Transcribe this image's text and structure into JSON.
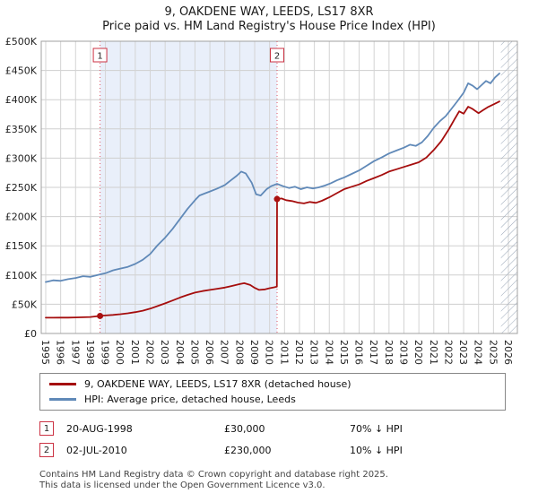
{
  "title": "9, OAKDENE WAY, LEEDS, LS17 8XR",
  "subtitle": "Price paid vs. HM Land Registry's House Price Index (HPI)",
  "legend": [
    {
      "label": "9, OAKDENE WAY, LEEDS, LS17 8XR (detached house)",
      "color": "#a50d0d"
    },
    {
      "label": "HPI: Average price, detached house, Leeds",
      "color": "#6089b8"
    }
  ],
  "sales": [
    {
      "num": "1",
      "date": "20-AUG-1998",
      "price": "£30,000",
      "hpi": "70% ↓ HPI"
    },
    {
      "num": "2",
      "date": "02-JUL-2010",
      "price": "£230,000",
      "hpi": "10% ↓ HPI"
    }
  ],
  "footer": {
    "line1": "Contains HM Land Registry data © Crown copyright and database right 2025.",
    "line2": "This data is licensed under the Open Government Licence v3.0."
  },
  "chart_data": {
    "type": "line",
    "title": "9, OAKDENE WAY, LEEDS, LS17 8XR",
    "subtitle": "Price paid vs. HM Land Registry's House Price Index (HPI)",
    "xlabel": "",
    "ylabel": "",
    "grid": true,
    "legend_position": "bottom",
    "xlim": [
      1994.7,
      2026.6
    ],
    "ylim": [
      0,
      500000
    ],
    "yticks": [
      0,
      50000,
      100000,
      150000,
      200000,
      250000,
      300000,
      350000,
      400000,
      450000,
      500000
    ],
    "ytick_labels": [
      "£0",
      "£50K",
      "£100K",
      "£150K",
      "£200K",
      "£250K",
      "£300K",
      "£350K",
      "£400K",
      "£450K",
      "£500K"
    ],
    "xticks": [
      1995,
      1996,
      1997,
      1998,
      1999,
      2000,
      2001,
      2002,
      2003,
      2004,
      2005,
      2006,
      2007,
      2008,
      2009,
      2010,
      2011,
      2012,
      2013,
      2014,
      2015,
      2016,
      2017,
      2018,
      2019,
      2020,
      2021,
      2022,
      2023,
      2024,
      2025,
      2026
    ],
    "shaded_region": {
      "x0": 1998.64,
      "x1": 2010.5,
      "color": "#e9effa"
    },
    "hatch_region": {
      "x0": 2025.5,
      "x1": 2026.6
    },
    "sale_lines": [
      {
        "x": 1998.64,
        "label": "1"
      },
      {
        "x": 2010.5,
        "label": "2"
      }
    ],
    "sale_points": [
      {
        "x": 1998.64,
        "y": 30000
      },
      {
        "x": 2010.5,
        "y": 230000
      }
    ],
    "series": [
      {
        "name": "9, OAKDENE WAY, LEEDS, LS17 8XR (detached house)",
        "color": "#a50d0d",
        "points": [
          [
            1995.0,
            27000
          ],
          [
            1995.5,
            27000
          ],
          [
            1996.0,
            27200
          ],
          [
            1996.5,
            27100
          ],
          [
            1997.0,
            27500
          ],
          [
            1997.5,
            27800
          ],
          [
            1998.0,
            28200
          ],
          [
            1998.64,
            30000
          ],
          [
            1999.0,
            30800
          ],
          [
            1999.5,
            31800
          ],
          [
            2000.0,
            33000
          ],
          [
            2000.5,
            34500
          ],
          [
            2001.0,
            36500
          ],
          [
            2001.5,
            39000
          ],
          [
            2002.0,
            42500
          ],
          [
            2002.5,
            47000
          ],
          [
            2003.0,
            51500
          ],
          [
            2003.5,
            56500
          ],
          [
            2004.0,
            61500
          ],
          [
            2004.5,
            66000
          ],
          [
            2005.0,
            70000
          ],
          [
            2005.5,
            72500
          ],
          [
            2006.0,
            74500
          ],
          [
            2006.5,
            76500
          ],
          [
            2007.0,
            78500
          ],
          [
            2007.5,
            81500
          ],
          [
            2008.0,
            84500
          ],
          [
            2008.3,
            86000
          ],
          [
            2008.7,
            83000
          ],
          [
            2009.0,
            78000
          ],
          [
            2009.3,
            74500
          ],
          [
            2009.7,
            75500
          ],
          [
            2010.0,
            77500
          ],
          [
            2010.3,
            79000
          ],
          [
            2010.49,
            80000
          ],
          [
            2010.5,
            230000
          ],
          [
            2010.8,
            231000
          ],
          [
            2011.1,
            228000
          ],
          [
            2011.5,
            226500
          ],
          [
            2011.9,
            224000
          ],
          [
            2012.3,
            222500
          ],
          [
            2012.7,
            225000
          ],
          [
            2013.1,
            223500
          ],
          [
            2013.5,
            227000
          ],
          [
            2014.0,
            233000
          ],
          [
            2014.5,
            240000
          ],
          [
            2015.0,
            247000
          ],
          [
            2015.5,
            251000
          ],
          [
            2016.0,
            255000
          ],
          [
            2016.5,
            261000
          ],
          [
            2017.0,
            266000
          ],
          [
            2017.5,
            271000
          ],
          [
            2018.0,
            277000
          ],
          [
            2018.5,
            281000
          ],
          [
            2019.0,
            285000
          ],
          [
            2019.5,
            289000
          ],
          [
            2020.0,
            293000
          ],
          [
            2020.5,
            301000
          ],
          [
            2021.0,
            314000
          ],
          [
            2021.5,
            329000
          ],
          [
            2022.0,
            349000
          ],
          [
            2022.4,
            367000
          ],
          [
            2022.7,
            380000
          ],
          [
            2023.0,
            376000
          ],
          [
            2023.3,
            388000
          ],
          [
            2023.6,
            384000
          ],
          [
            2024.0,
            377000
          ],
          [
            2024.3,
            382000
          ],
          [
            2024.6,
            387000
          ],
          [
            2025.0,
            392000
          ],
          [
            2025.4,
            397000
          ]
        ]
      },
      {
        "name": "HPI: Average price, detached house, Leeds",
        "color": "#6089b8",
        "points": [
          [
            1995.0,
            88000
          ],
          [
            1995.5,
            91000
          ],
          [
            1996.0,
            90000
          ],
          [
            1996.5,
            93000
          ],
          [
            1997.0,
            95000
          ],
          [
            1997.5,
            98000
          ],
          [
            1998.0,
            97000
          ],
          [
            1998.64,
            101000
          ],
          [
            1999.0,
            103000
          ],
          [
            1999.5,
            108000
          ],
          [
            2000.0,
            111000
          ],
          [
            2000.5,
            114000
          ],
          [
            2001.0,
            119000
          ],
          [
            2001.5,
            126000
          ],
          [
            2002.0,
            136000
          ],
          [
            2002.5,
            151000
          ],
          [
            2003.0,
            164000
          ],
          [
            2003.5,
            179000
          ],
          [
            2004.0,
            196000
          ],
          [
            2004.5,
            213000
          ],
          [
            2005.0,
            228000
          ],
          [
            2005.3,
            236000
          ],
          [
            2005.7,
            240000
          ],
          [
            2006.0,
            243000
          ],
          [
            2006.5,
            248000
          ],
          [
            2007.0,
            254000
          ],
          [
            2007.4,
            262000
          ],
          [
            2007.8,
            270000
          ],
          [
            2008.1,
            277000
          ],
          [
            2008.4,
            274000
          ],
          [
            2008.8,
            258000
          ],
          [
            2009.1,
            238000
          ],
          [
            2009.4,
            236000
          ],
          [
            2009.8,
            247000
          ],
          [
            2010.1,
            252000
          ],
          [
            2010.5,
            256000
          ],
          [
            2010.9,
            252000
          ],
          [
            2011.3,
            249000
          ],
          [
            2011.7,
            251000
          ],
          [
            2012.1,
            247000
          ],
          [
            2012.5,
            250000
          ],
          [
            2012.9,
            248000
          ],
          [
            2013.3,
            250000
          ],
          [
            2013.7,
            253000
          ],
          [
            2014.1,
            257000
          ],
          [
            2014.5,
            262000
          ],
          [
            2015.0,
            267000
          ],
          [
            2015.5,
            273000
          ],
          [
            2016.0,
            279000
          ],
          [
            2016.5,
            287000
          ],
          [
            2017.0,
            295000
          ],
          [
            2017.5,
            301000
          ],
          [
            2018.0,
            308000
          ],
          [
            2018.5,
            313000
          ],
          [
            2019.0,
            318000
          ],
          [
            2019.4,
            323000
          ],
          [
            2019.8,
            321000
          ],
          [
            2020.2,
            327000
          ],
          [
            2020.6,
            338000
          ],
          [
            2021.0,
            352000
          ],
          [
            2021.4,
            363000
          ],
          [
            2021.8,
            372000
          ],
          [
            2022.2,
            385000
          ],
          [
            2022.6,
            398000
          ],
          [
            2023.0,
            412000
          ],
          [
            2023.3,
            428000
          ],
          [
            2023.6,
            424000
          ],
          [
            2023.9,
            418000
          ],
          [
            2024.2,
            425000
          ],
          [
            2024.5,
            432000
          ],
          [
            2024.8,
            428000
          ],
          [
            2025.1,
            438000
          ],
          [
            2025.4,
            445000
          ]
        ]
      }
    ]
  }
}
